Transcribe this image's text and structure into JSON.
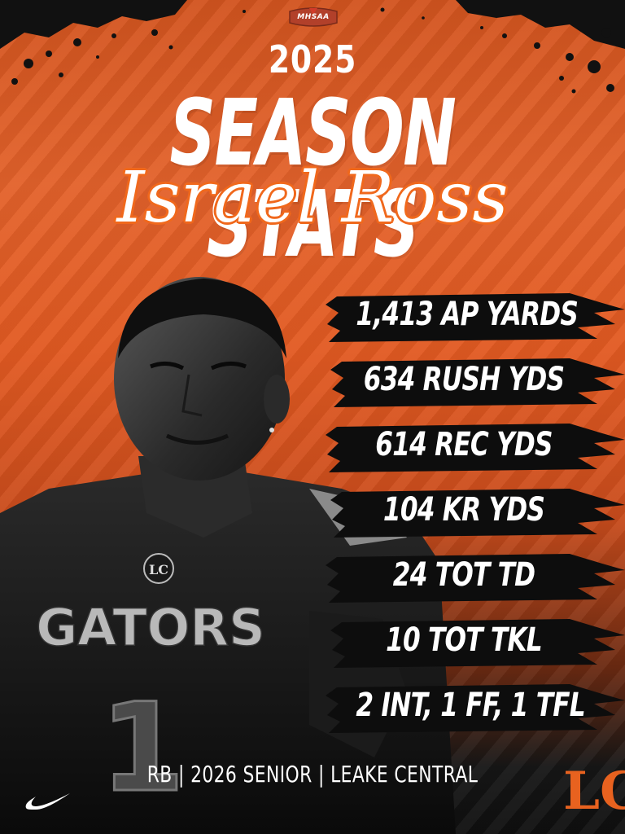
{
  "org_badge": "MHSAA",
  "season_year": "2025",
  "headline": "SEASON STATS",
  "player_name": "Israel Ross",
  "jersey": {
    "team_name": "GATORS",
    "chest_monogram": "LC",
    "number": "1"
  },
  "stats": [
    "1,413 AP YARDS",
    "634 RUSH YDS",
    "614 REC YDS",
    "104 KR YDS",
    "24 TOT TD",
    "10 TOT TKL",
    "2 INT, 1 FF, 1 TFL"
  ],
  "footer": "RB | 2026 SENIOR | LEAKE CENTRAL",
  "school_logo": "LC",
  "brand_icon": "nike-swoosh-icon",
  "colors": {
    "accent_orange": "#e8621f",
    "bar_black": "#0d0d0d",
    "text_white": "#ffffff"
  }
}
